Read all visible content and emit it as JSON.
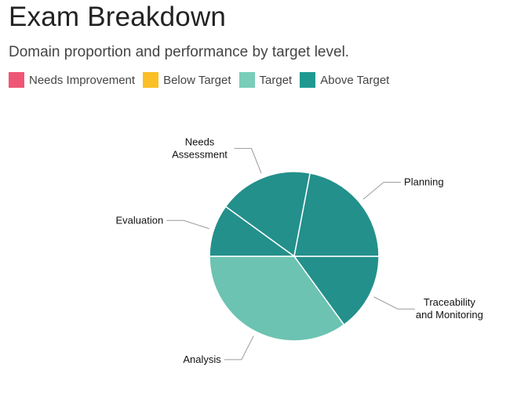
{
  "header": {
    "title": "Exam Breakdown",
    "subtitle": "Domain proportion and performance by target level."
  },
  "legend": [
    {
      "label": "Needs Improvement",
      "color": "#ef5675"
    },
    {
      "label": "Below Target",
      "color": "#fbbf24"
    },
    {
      "label": "Target",
      "color": "#79cdb9"
    },
    {
      "label": "Above Target",
      "color": "#1f9990"
    }
  ],
  "chart_data": {
    "type": "pie",
    "legend_position": "top-left",
    "slices": [
      {
        "label": "Traceability\nand Monitoring",
        "value": 15,
        "level": "Above Target",
        "color": "#23908b"
      },
      {
        "label": "Analysis",
        "value": 35,
        "level": "Target",
        "color": "#6cc3b1"
      },
      {
        "label": "Evaluation",
        "value": 10,
        "level": "Above Target",
        "color": "#23908b"
      },
      {
        "label": "Needs\nAssessment",
        "value": 18,
        "level": "Above Target",
        "color": "#23908b"
      },
      {
        "label": "Planning",
        "value": 22,
        "level": "Above Target",
        "color": "#23908b"
      }
    ]
  }
}
